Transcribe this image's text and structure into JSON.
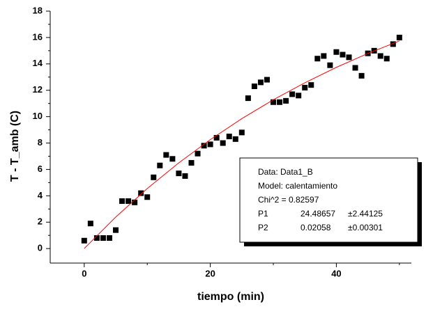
{
  "chart_data": {
    "type": "scatter",
    "xlabel": "tiempo (min)",
    "ylabel": "T - T_amb   (C)",
    "xlim": [
      -5.4,
      51.9
    ],
    "ylim": [
      -1.1,
      18
    ],
    "xticks": [
      0,
      20,
      40
    ],
    "xticks_minor": [
      10,
      30,
      50
    ],
    "yticks": [
      0,
      2,
      4,
      6,
      8,
      10,
      12,
      14,
      16,
      18
    ],
    "yticks_minor": [
      1,
      3,
      5,
      7,
      9,
      11,
      13,
      15,
      17
    ],
    "series": [
      {
        "name": "Data1_B",
        "kind": "markers",
        "color": "#000000",
        "x": [
          0,
          1,
          2,
          3,
          4,
          5,
          6,
          7,
          8,
          9,
          10,
          11,
          12,
          13,
          14,
          15,
          16,
          17,
          18,
          19,
          20,
          21,
          22,
          23,
          24,
          25,
          26,
          27,
          28,
          29,
          30,
          31,
          32,
          33,
          34,
          35,
          36,
          37,
          38,
          39,
          40,
          41,
          42,
          43,
          44,
          45,
          46,
          47,
          48,
          49,
          50
        ],
        "values": [
          0.6,
          1.9,
          0.8,
          0.8,
          0.8,
          1.4,
          3.6,
          3.6,
          3.5,
          4.2,
          3.9,
          5.4,
          6.3,
          7.1,
          6.8,
          5.7,
          5.5,
          6.5,
          7.2,
          7.8,
          7.9,
          8.4,
          8.0,
          8.5,
          8.3,
          8.8,
          11.4,
          12.3,
          12.6,
          12.8,
          11.1,
          11.1,
          11.2,
          11.7,
          11.6,
          12.2,
          12.4,
          14.4,
          14.6,
          13.9,
          14.9,
          14.7,
          14.5,
          13.7,
          13.1,
          14.8,
          15.0,
          14.6,
          14.4,
          15.5,
          16.0
        ]
      },
      {
        "name": "calentamiento",
        "kind": "line",
        "color": "#ff0000",
        "x": [
          0,
          5,
          10,
          15,
          20,
          25,
          30,
          35,
          40,
          45,
          50
        ],
        "values": [
          0,
          2.39,
          4.55,
          6.5,
          8.26,
          9.85,
          11.28,
          12.57,
          13.74,
          14.79,
          15.74
        ]
      }
    ],
    "fit_box": {
      "data": "Data: Data1_B",
      "model": "Model: calentamiento",
      "chi": "Chi^2 = 0.82597",
      "params": [
        [
          "P1",
          "24.48657",
          "±2.44125"
        ],
        [
          "P2",
          "0.02058",
          "±0.00301"
        ]
      ]
    }
  }
}
